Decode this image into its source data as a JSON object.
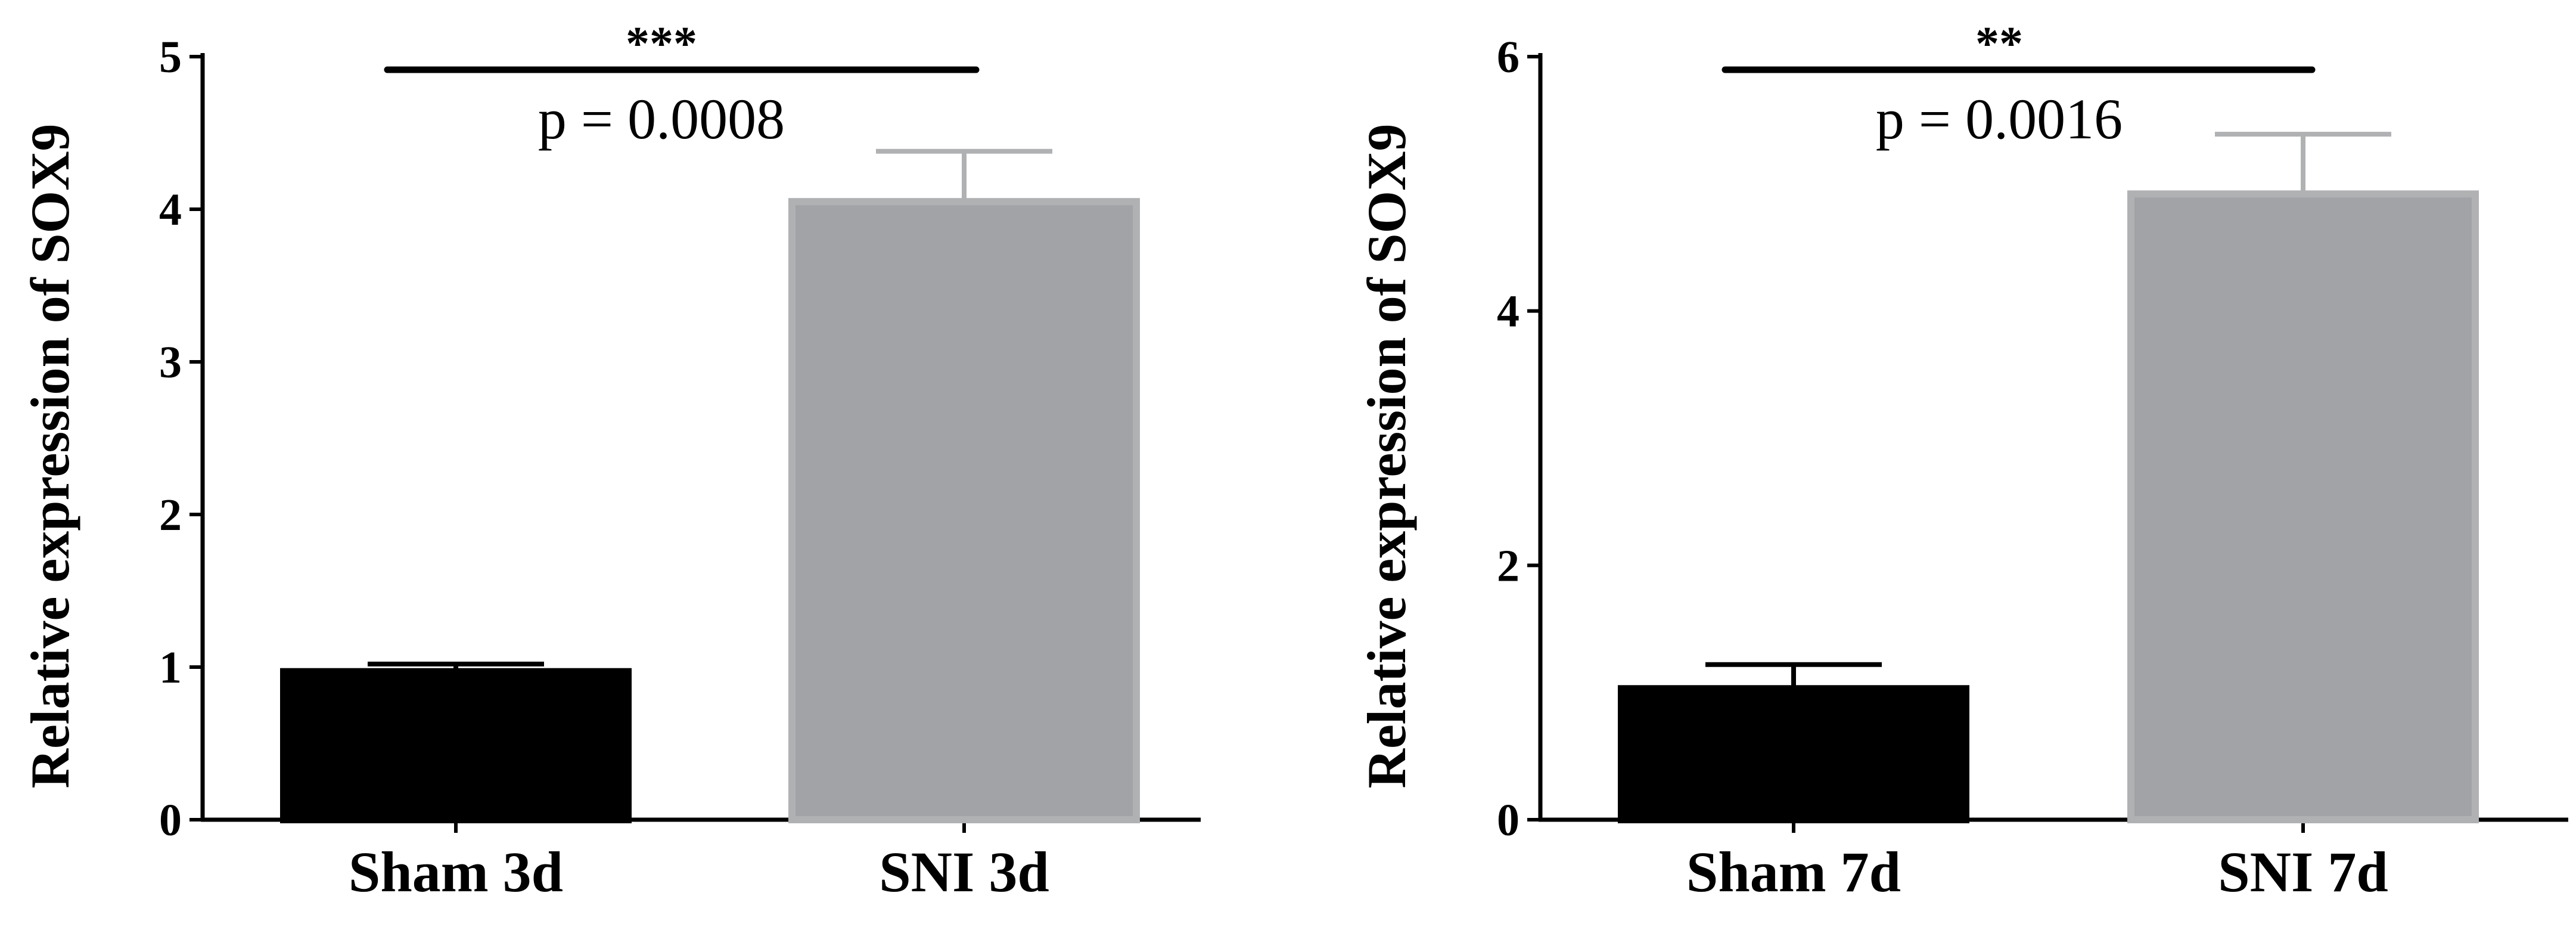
{
  "chart_data": [
    {
      "type": "bar",
      "title": "",
      "xlabel": "",
      "ylabel": "Relative expression of SOX9",
      "ylim": [
        0,
        5
      ],
      "yticks": [
        "0",
        "1",
        "2",
        "3",
        "4",
        "5"
      ],
      "ytick_values": [
        0,
        1,
        2,
        3,
        4,
        5
      ],
      "categories": [
        "Sham 3d",
        "SNI 3d"
      ],
      "values": [
        0.97,
        4.05
      ],
      "errors": [
        0.05,
        0.33
      ],
      "bar_colors": [
        "#000000",
        "#a2a3a6"
      ],
      "bar_edge_colors": [
        "#000000",
        "#b0b1b3"
      ],
      "significance": {
        "stars": "***",
        "p_text": "p = 0.0008"
      },
      "grid": false,
      "legend": "none"
    },
    {
      "type": "bar",
      "title": "",
      "xlabel": "",
      "ylabel": "Relative expression of SOX9",
      "ylim": [
        0,
        6
      ],
      "yticks": [
        "0",
        "2",
        "4",
        "6"
      ],
      "ytick_values": [
        0,
        2,
        4,
        6
      ],
      "categories": [
        "Sham 7d",
        "SNI 7d"
      ],
      "values": [
        1.03,
        4.92
      ],
      "errors": [
        0.19,
        0.47
      ],
      "bar_colors": [
        "#000000",
        "#a2a3a6"
      ],
      "bar_edge_colors": [
        "#000000",
        "#b0b1b3"
      ],
      "significance": {
        "stars": "**",
        "p_text": "p = 0.0016"
      },
      "grid": false,
      "legend": "none"
    }
  ]
}
